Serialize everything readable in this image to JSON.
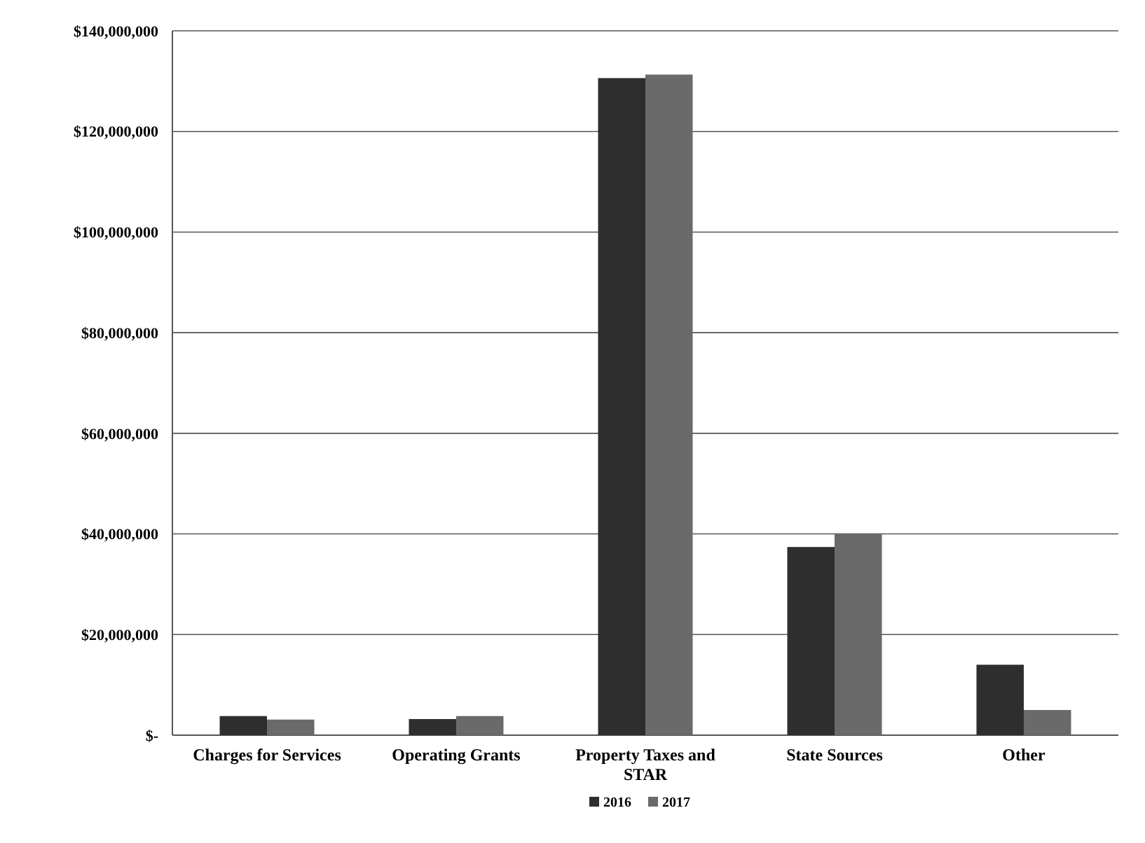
{
  "chart_data": {
    "type": "bar",
    "categories": [
      "Charges for Services",
      "Operating Grants",
      "Property Taxes and STAR",
      "State Sources",
      "Other"
    ],
    "series": [
      {
        "name": "2016",
        "color": "#2e2e2e",
        "values": [
          3800000,
          3200000,
          130600000,
          37400000,
          14000000
        ]
      },
      {
        "name": "2017",
        "color": "#6a6a6a",
        "values": [
          3100000,
          3800000,
          131300000,
          40100000,
          5000000
        ]
      }
    ],
    "ylim": [
      0,
      140000000
    ],
    "yticks": [
      {
        "value": 0,
        "label": "$-"
      },
      {
        "value": 20000000,
        "label": "$20,000,000"
      },
      {
        "value": 40000000,
        "label": "$40,000,000"
      },
      {
        "value": 60000000,
        "label": "$60,000,000"
      },
      {
        "value": 80000000,
        "label": "$80,000,000"
      },
      {
        "value": 100000000,
        "label": "$100,000,000"
      },
      {
        "value": 120000000,
        "label": "$120,000,000"
      },
      {
        "value": 140000000,
        "label": "$140,000,000"
      }
    ],
    "grid": "y",
    "legend": "bottom"
  }
}
